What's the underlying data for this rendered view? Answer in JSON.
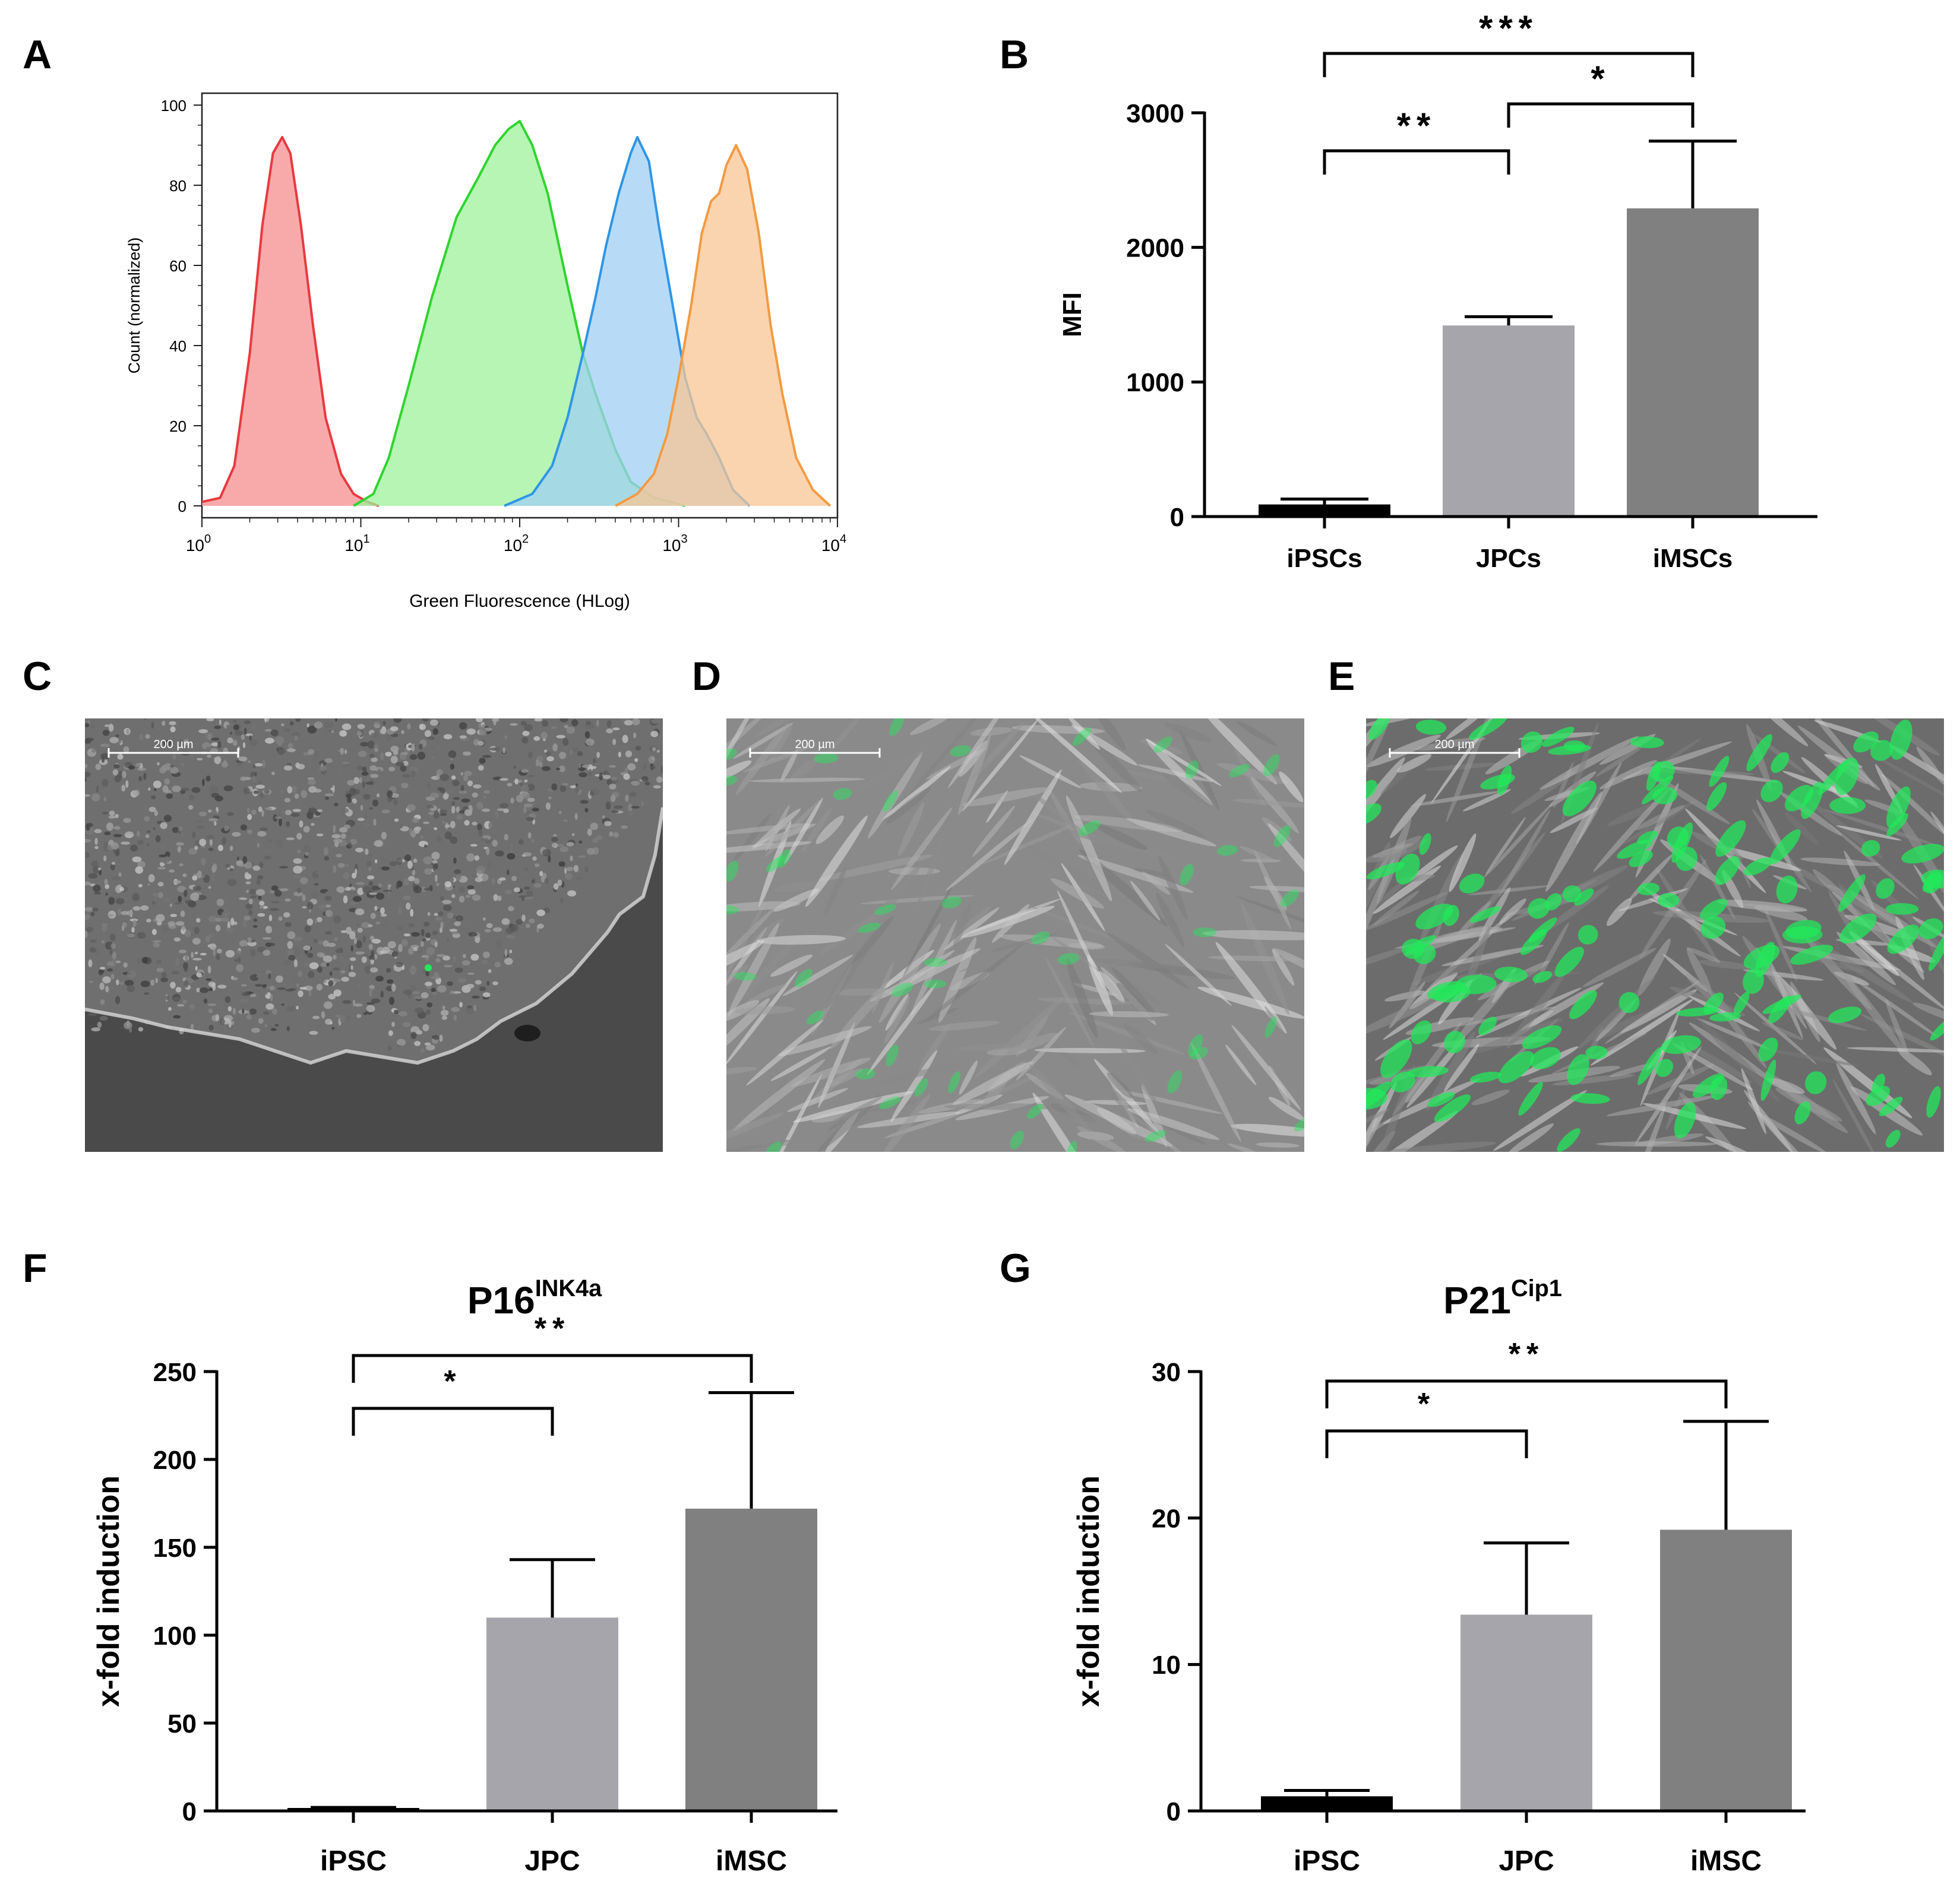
{
  "panel_labels": {
    "A": "A",
    "B": "B",
    "C": "C",
    "D": "D",
    "E": "E",
    "F": "F",
    "G": "G"
  },
  "colors": {
    "hist_red": "#e8393f",
    "hist_red_fill": "#f58d8f",
    "hist_green": "#2fd42f",
    "hist_green_fill": "#9ef29a",
    "hist_blue": "#2f95e6",
    "hist_blue_fill": "#9fcff4",
    "hist_orange": "#f29a42",
    "hist_orange_fill": "#f8c594",
    "bar_black": "#000000",
    "bar_light": "#a6a5ab",
    "bar_dark": "#808080",
    "micro_green": "#22e85a"
  },
  "chart_data": [
    {
      "id": "A",
      "type": "area",
      "xlabel": "Green Fluorescence (HLog)",
      "ylabel": "Count (normalized)",
      "xscale": "log",
      "xlim": [
        1,
        10000
      ],
      "ylim": [
        0,
        100
      ],
      "xtick_labels": [
        {
          "base": "10",
          "exp": "0"
        },
        {
          "base": "10",
          "exp": "1"
        },
        {
          "base": "10",
          "exp": "2"
        },
        {
          "base": "10",
          "exp": "3"
        },
        {
          "base": "10",
          "exp": "4"
        }
      ],
      "yticks": [
        0,
        20,
        40,
        60,
        80,
        100
      ],
      "series": [
        {
          "color": "red",
          "x": [
            1,
            1.3,
            1.6,
            2.0,
            2.4,
            2.8,
            3.2,
            3.6,
            4.2,
            5.0,
            6.0,
            7.5,
            9,
            11,
            13
          ],
          "y": [
            1,
            2,
            10,
            38,
            70,
            88,
            92,
            88,
            70,
            45,
            22,
            8,
            3,
            1,
            0
          ]
        },
        {
          "color": "green",
          "x": [
            9,
            12,
            15,
            20,
            28,
            40,
            55,
            70,
            85,
            100,
            120,
            150,
            200,
            250,
            300,
            400,
            500,
            700,
            900,
            1100
          ],
          "y": [
            0,
            3,
            12,
            30,
            52,
            72,
            82,
            90,
            94,
            96,
            90,
            78,
            55,
            38,
            28,
            14,
            6,
            2,
            1,
            0
          ]
        },
        {
          "color": "blue",
          "x": [
            80,
            120,
            160,
            200,
            250,
            300,
            350,
            420,
            500,
            550,
            650,
            750,
            900,
            1100,
            1300,
            1500,
            1800,
            2200,
            2800
          ],
          "y": [
            0,
            3,
            10,
            22,
            38,
            52,
            65,
            78,
            88,
            92,
            86,
            70,
            52,
            32,
            22,
            18,
            12,
            4,
            0
          ]
        },
        {
          "color": "orange",
          "x": [
            400,
            550,
            700,
            850,
            1000,
            1200,
            1400,
            1600,
            1800,
            2000,
            2300,
            2700,
            3200,
            3800,
            4500,
            5500,
            7000,
            9000
          ],
          "y": [
            0,
            3,
            8,
            18,
            32,
            50,
            68,
            76,
            78,
            85,
            90,
            84,
            68,
            45,
            28,
            12,
            4,
            0
          ]
        }
      ]
    },
    {
      "id": "B",
      "type": "bar",
      "categories": [
        "iPSCs",
        "JPCs",
        "iMSCs"
      ],
      "values": [
        90,
        1420,
        2290
      ],
      "errors": [
        40,
        65,
        500
      ],
      "ylabel": "MFI",
      "ylim": [
        0,
        3000
      ],
      "yticks": [
        0,
        1000,
        2000,
        3000
      ],
      "significance": [
        {
          "from": 0,
          "to": 1,
          "label": "**"
        },
        {
          "from": 1,
          "to": 2,
          "label": "*"
        },
        {
          "from": 0,
          "to": 2,
          "label": "***"
        }
      ]
    },
    {
      "id": "F",
      "type": "bar",
      "title": {
        "base": "P16",
        "sup": "INK4a"
      },
      "categories": [
        "iPSC",
        "JPC",
        "iMSC"
      ],
      "values": [
        1,
        110,
        172
      ],
      "errors": [
        1,
        33,
        66
      ],
      "ylabel": "x-fold induction",
      "ylim": [
        0,
        250
      ],
      "yticks": [
        0,
        50,
        100,
        150,
        200,
        250
      ],
      "significance": [
        {
          "from": 0,
          "to": 1,
          "label": "*"
        },
        {
          "from": 0,
          "to": 2,
          "label": "**"
        }
      ]
    },
    {
      "id": "G",
      "type": "bar",
      "title": {
        "base": "P21",
        "sup": "Cip1"
      },
      "categories": [
        "iPSC",
        "JPC",
        "iMSC"
      ],
      "values": [
        1,
        13.4,
        19.2
      ],
      "errors": [
        0.4,
        4.9,
        7.4
      ],
      "ylabel": "x-fold induction",
      "ylim": [
        0,
        30
      ],
      "yticks": [
        0,
        10,
        20,
        30
      ],
      "significance": [
        {
          "from": 0,
          "to": 1,
          "label": "*"
        },
        {
          "from": 0,
          "to": 2,
          "label": "**"
        }
      ]
    }
  ],
  "micrographs": [
    {
      "id": "C",
      "scale_bar": "200 µm",
      "green_level": 0.02
    },
    {
      "id": "D",
      "scale_bar": "200 µm",
      "green_level": 0.2
    },
    {
      "id": "E",
      "scale_bar": "200 µm",
      "green_level": 0.8
    }
  ]
}
